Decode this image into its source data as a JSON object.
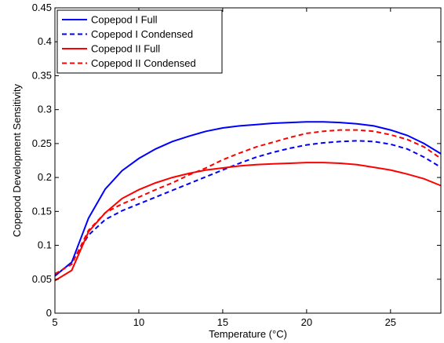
{
  "chart_data": {
    "type": "line",
    "xlabel": "Temperature (°C)",
    "ylabel": "Copepod Development Sensitivity",
    "xlim": [
      5,
      28
    ],
    "ylim": [
      0,
      0.45
    ],
    "xticks": [
      5,
      10,
      15,
      20,
      25
    ],
    "xtick_labels": [
      "5",
      "10",
      "15",
      "20",
      "25"
    ],
    "yticks": [
      0,
      0.05,
      0.1,
      0.15,
      0.2,
      0.25,
      0.3,
      0.35,
      0.4,
      0.45
    ],
    "ytick_labels": [
      "0",
      "0.05",
      "0.1",
      "0.15",
      "0.2",
      "0.25",
      "0.3",
      "0.35",
      "0.4",
      "0.45"
    ],
    "grid": false,
    "legend_position": "top-left",
    "x": [
      5,
      6,
      7,
      8,
      9,
      10,
      11,
      12,
      13,
      14,
      15,
      16,
      17,
      18,
      19,
      20,
      21,
      22,
      23,
      24,
      25,
      26,
      27,
      28
    ],
    "series": [
      {
        "name": "Copepod I Full",
        "color": "#0000ff",
        "dash": "solid",
        "values": [
          0.055,
          0.075,
          0.14,
          0.183,
          0.21,
          0.228,
          0.242,
          0.253,
          0.261,
          0.268,
          0.273,
          0.276,
          0.278,
          0.28,
          0.281,
          0.282,
          0.282,
          0.281,
          0.279,
          0.276,
          0.27,
          0.262,
          0.25,
          0.235
        ]
      },
      {
        "name": "Copepod I Condensed",
        "color": "#0000ff",
        "dash": "dashed",
        "values": [
          0.055,
          0.075,
          0.115,
          0.138,
          0.151,
          0.161,
          0.171,
          0.181,
          0.191,
          0.201,
          0.211,
          0.221,
          0.23,
          0.237,
          0.243,
          0.248,
          0.251,
          0.253,
          0.254,
          0.253,
          0.249,
          0.242,
          0.23,
          0.215
        ]
      },
      {
        "name": "Copepod II Full",
        "color": "#ff0000",
        "dash": "solid",
        "values": [
          0.048,
          0.063,
          0.12,
          0.148,
          0.169,
          0.182,
          0.192,
          0.2,
          0.206,
          0.211,
          0.214,
          0.217,
          0.219,
          0.22,
          0.221,
          0.222,
          0.222,
          0.221,
          0.219,
          0.215,
          0.211,
          0.205,
          0.198,
          0.188
        ]
      },
      {
        "name": "Copepod II Condensed",
        "color": "#ff0000",
        "dash": "dashed",
        "values": [
          0.058,
          0.072,
          0.122,
          0.148,
          0.161,
          0.171,
          0.182,
          0.192,
          0.204,
          0.214,
          0.226,
          0.236,
          0.245,
          0.252,
          0.259,
          0.265,
          0.268,
          0.27,
          0.27,
          0.268,
          0.263,
          0.256,
          0.245,
          0.228
        ]
      }
    ]
  }
}
